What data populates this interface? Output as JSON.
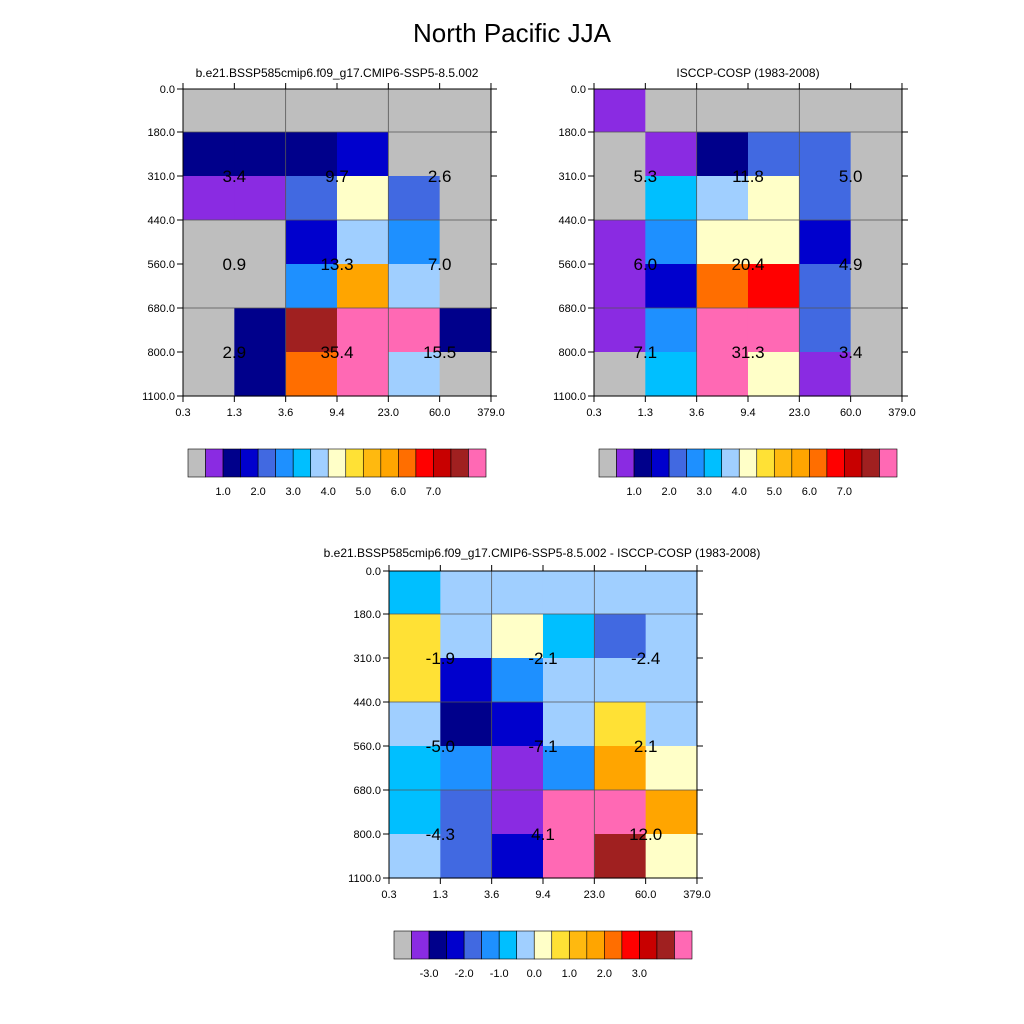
{
  "title": "North Pacific JJA",
  "colors": {
    "palette_abs": [
      "#bebebe",
      "#8a2be2",
      "#00008b",
      "#0000cd",
      "#4169e1",
      "#1e90ff",
      "#00bfff",
      "#a0cfff",
      "#ffffc8",
      "#ffe135",
      "#ffb90f",
      "#ffa500",
      "#ff6e00",
      "#ff0000",
      "#c80000",
      "#a02020",
      "#ff69b4"
    ],
    "palette_diff": [
      "#bebebe",
      "#8a2be2",
      "#00008b",
      "#0000cd",
      "#4169e1",
      "#1e90ff",
      "#00bfff",
      "#a0cfff",
      "#ffffc8",
      "#ffe135",
      "#ffb90f",
      "#ffa500",
      "#ff6e00",
      "#ff0000",
      "#c80000",
      "#a02020",
      "#ff69b4"
    ]
  },
  "chart_data": [
    {
      "type": "heatmap",
      "title": "b.e21.BSSP585cmip6.f09_g17.CMIP6-SSP5-8.5.002",
      "x_ticks": [
        "0.3",
        "1.3",
        "3.6",
        "9.4",
        "23.0",
        "60.0",
        "379.0"
      ],
      "y_ticks": [
        "0.0",
        "180.0",
        "310.0",
        "440.0",
        "560.0",
        "680.0",
        "800.0",
        "1100.0"
      ],
      "cells": [
        [
          0,
          0,
          0,
          0,
          0,
          0
        ],
        [
          2,
          2,
          2,
          3,
          0,
          0
        ],
        [
          1,
          1,
          4,
          8,
          4,
          0
        ],
        [
          0,
          0,
          3,
          7,
          5,
          0
        ],
        [
          0,
          0,
          5,
          11,
          7,
          0
        ],
        [
          0,
          2,
          15,
          16,
          16,
          2
        ],
        [
          0,
          2,
          12,
          16,
          7,
          0
        ]
      ],
      "values": [
        {
          "text": "3.4",
          "col": 1,
          "row": 1
        },
        {
          "text": "9.7",
          "col": 3,
          "row": 1
        },
        {
          "text": "2.6",
          "col": 5,
          "row": 1
        },
        {
          "text": "0.9",
          "col": 1,
          "row": 3
        },
        {
          "text": "13.3",
          "col": 3,
          "row": 3
        },
        {
          "text": "7.0",
          "col": 5,
          "row": 3
        },
        {
          "text": "2.9",
          "col": 1,
          "row": 5
        },
        {
          "text": "35.4",
          "col": 3,
          "row": 5
        },
        {
          "text": "15.5",
          "col": 5,
          "row": 5
        }
      ],
      "colorbar_labels": [
        "1.0",
        "2.0",
        "3.0",
        "4.0",
        "5.0",
        "6.0",
        "7.0"
      ]
    },
    {
      "type": "heatmap",
      "title": "ISCCP-COSP (1983-2008)",
      "x_ticks": [
        "0.3",
        "1.3",
        "3.6",
        "9.4",
        "23.0",
        "60.0",
        "379.0"
      ],
      "y_ticks": [
        "0.0",
        "180.0",
        "310.0",
        "440.0",
        "560.0",
        "680.0",
        "800.0",
        "1100.0"
      ],
      "cells": [
        [
          1,
          0,
          0,
          0,
          0,
          0
        ],
        [
          0,
          1,
          2,
          4,
          4,
          0
        ],
        [
          0,
          6,
          7,
          8,
          4,
          0
        ],
        [
          1,
          5,
          8,
          8,
          3,
          0
        ],
        [
          1,
          3,
          12,
          13,
          4,
          0
        ],
        [
          1,
          5,
          16,
          16,
          4,
          0
        ],
        [
          0,
          6,
          16,
          8,
          1,
          0
        ]
      ],
      "values": [
        {
          "text": "5.3",
          "col": 1,
          "row": 1
        },
        {
          "text": "11.8",
          "col": 3,
          "row": 1
        },
        {
          "text": "5.0",
          "col": 5,
          "row": 1
        },
        {
          "text": "6.0",
          "col": 1,
          "row": 3
        },
        {
          "text": "20.4",
          "col": 3,
          "row": 3
        },
        {
          "text": "4.9",
          "col": 5,
          "row": 3
        },
        {
          "text": "7.1",
          "col": 1,
          "row": 5
        },
        {
          "text": "31.3",
          "col": 3,
          "row": 5
        },
        {
          "text": "3.4",
          "col": 5,
          "row": 5
        }
      ],
      "colorbar_labels": [
        "1.0",
        "2.0",
        "3.0",
        "4.0",
        "5.0",
        "6.0",
        "7.0"
      ]
    },
    {
      "type": "heatmap",
      "title": "b.e21.BSSP585cmip6.f09_g17.CMIP6-SSP5-8.5.002 - ISCCP-COSP (1983-2008)",
      "x_ticks": [
        "0.3",
        "1.3",
        "3.6",
        "9.4",
        "23.0",
        "60.0",
        "379.0"
      ],
      "y_ticks": [
        "0.0",
        "180.0",
        "310.0",
        "440.0",
        "560.0",
        "680.0",
        "800.0",
        "1100.0"
      ],
      "cells": [
        [
          6,
          7,
          7,
          7,
          7,
          7
        ],
        [
          9,
          7,
          8,
          6,
          4,
          7
        ],
        [
          9,
          3,
          5,
          7,
          7,
          7
        ],
        [
          7,
          2,
          3,
          7,
          9,
          7
        ],
        [
          6,
          5,
          1,
          5,
          11,
          8
        ],
        [
          6,
          4,
          1,
          16,
          16,
          11
        ],
        [
          7,
          4,
          3,
          16,
          15,
          8
        ]
      ],
      "values": [
        {
          "text": "-1.9",
          "col": 1,
          "row": 1
        },
        {
          "text": "-2.1",
          "col": 3,
          "row": 1
        },
        {
          "text": "-2.4",
          "col": 5,
          "row": 1
        },
        {
          "text": "-5.0",
          "col": 1,
          "row": 3
        },
        {
          "text": "-7.1",
          "col": 3,
          "row": 3
        },
        {
          "text": "2.1",
          "col": 5,
          "row": 3
        },
        {
          "text": "-4.3",
          "col": 1,
          "row": 5
        },
        {
          "text": "4.1",
          "col": 3,
          "row": 5
        },
        {
          "text": "12.0",
          "col": 5,
          "row": 5
        }
      ],
      "colorbar_labels": [
        "-3.0",
        "-2.0",
        "-1.0",
        "0.0",
        "1.0",
        "2.0",
        "3.0"
      ]
    }
  ]
}
